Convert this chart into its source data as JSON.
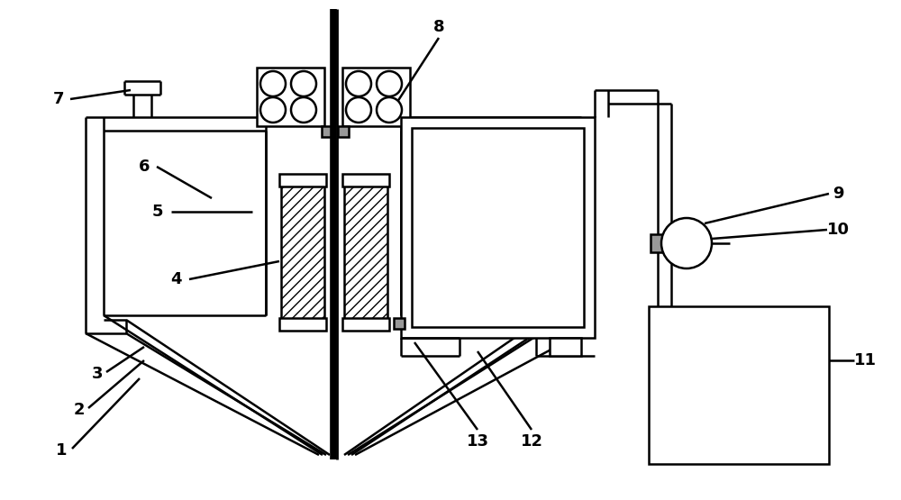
{
  "bg_color": "#ffffff",
  "line_color": "#000000",
  "lw": 1.8,
  "lw_thick": 4.0,
  "font_size": 13,
  "font_weight": "bold",
  "hatch": "///",
  "gray_fill": "#999999"
}
